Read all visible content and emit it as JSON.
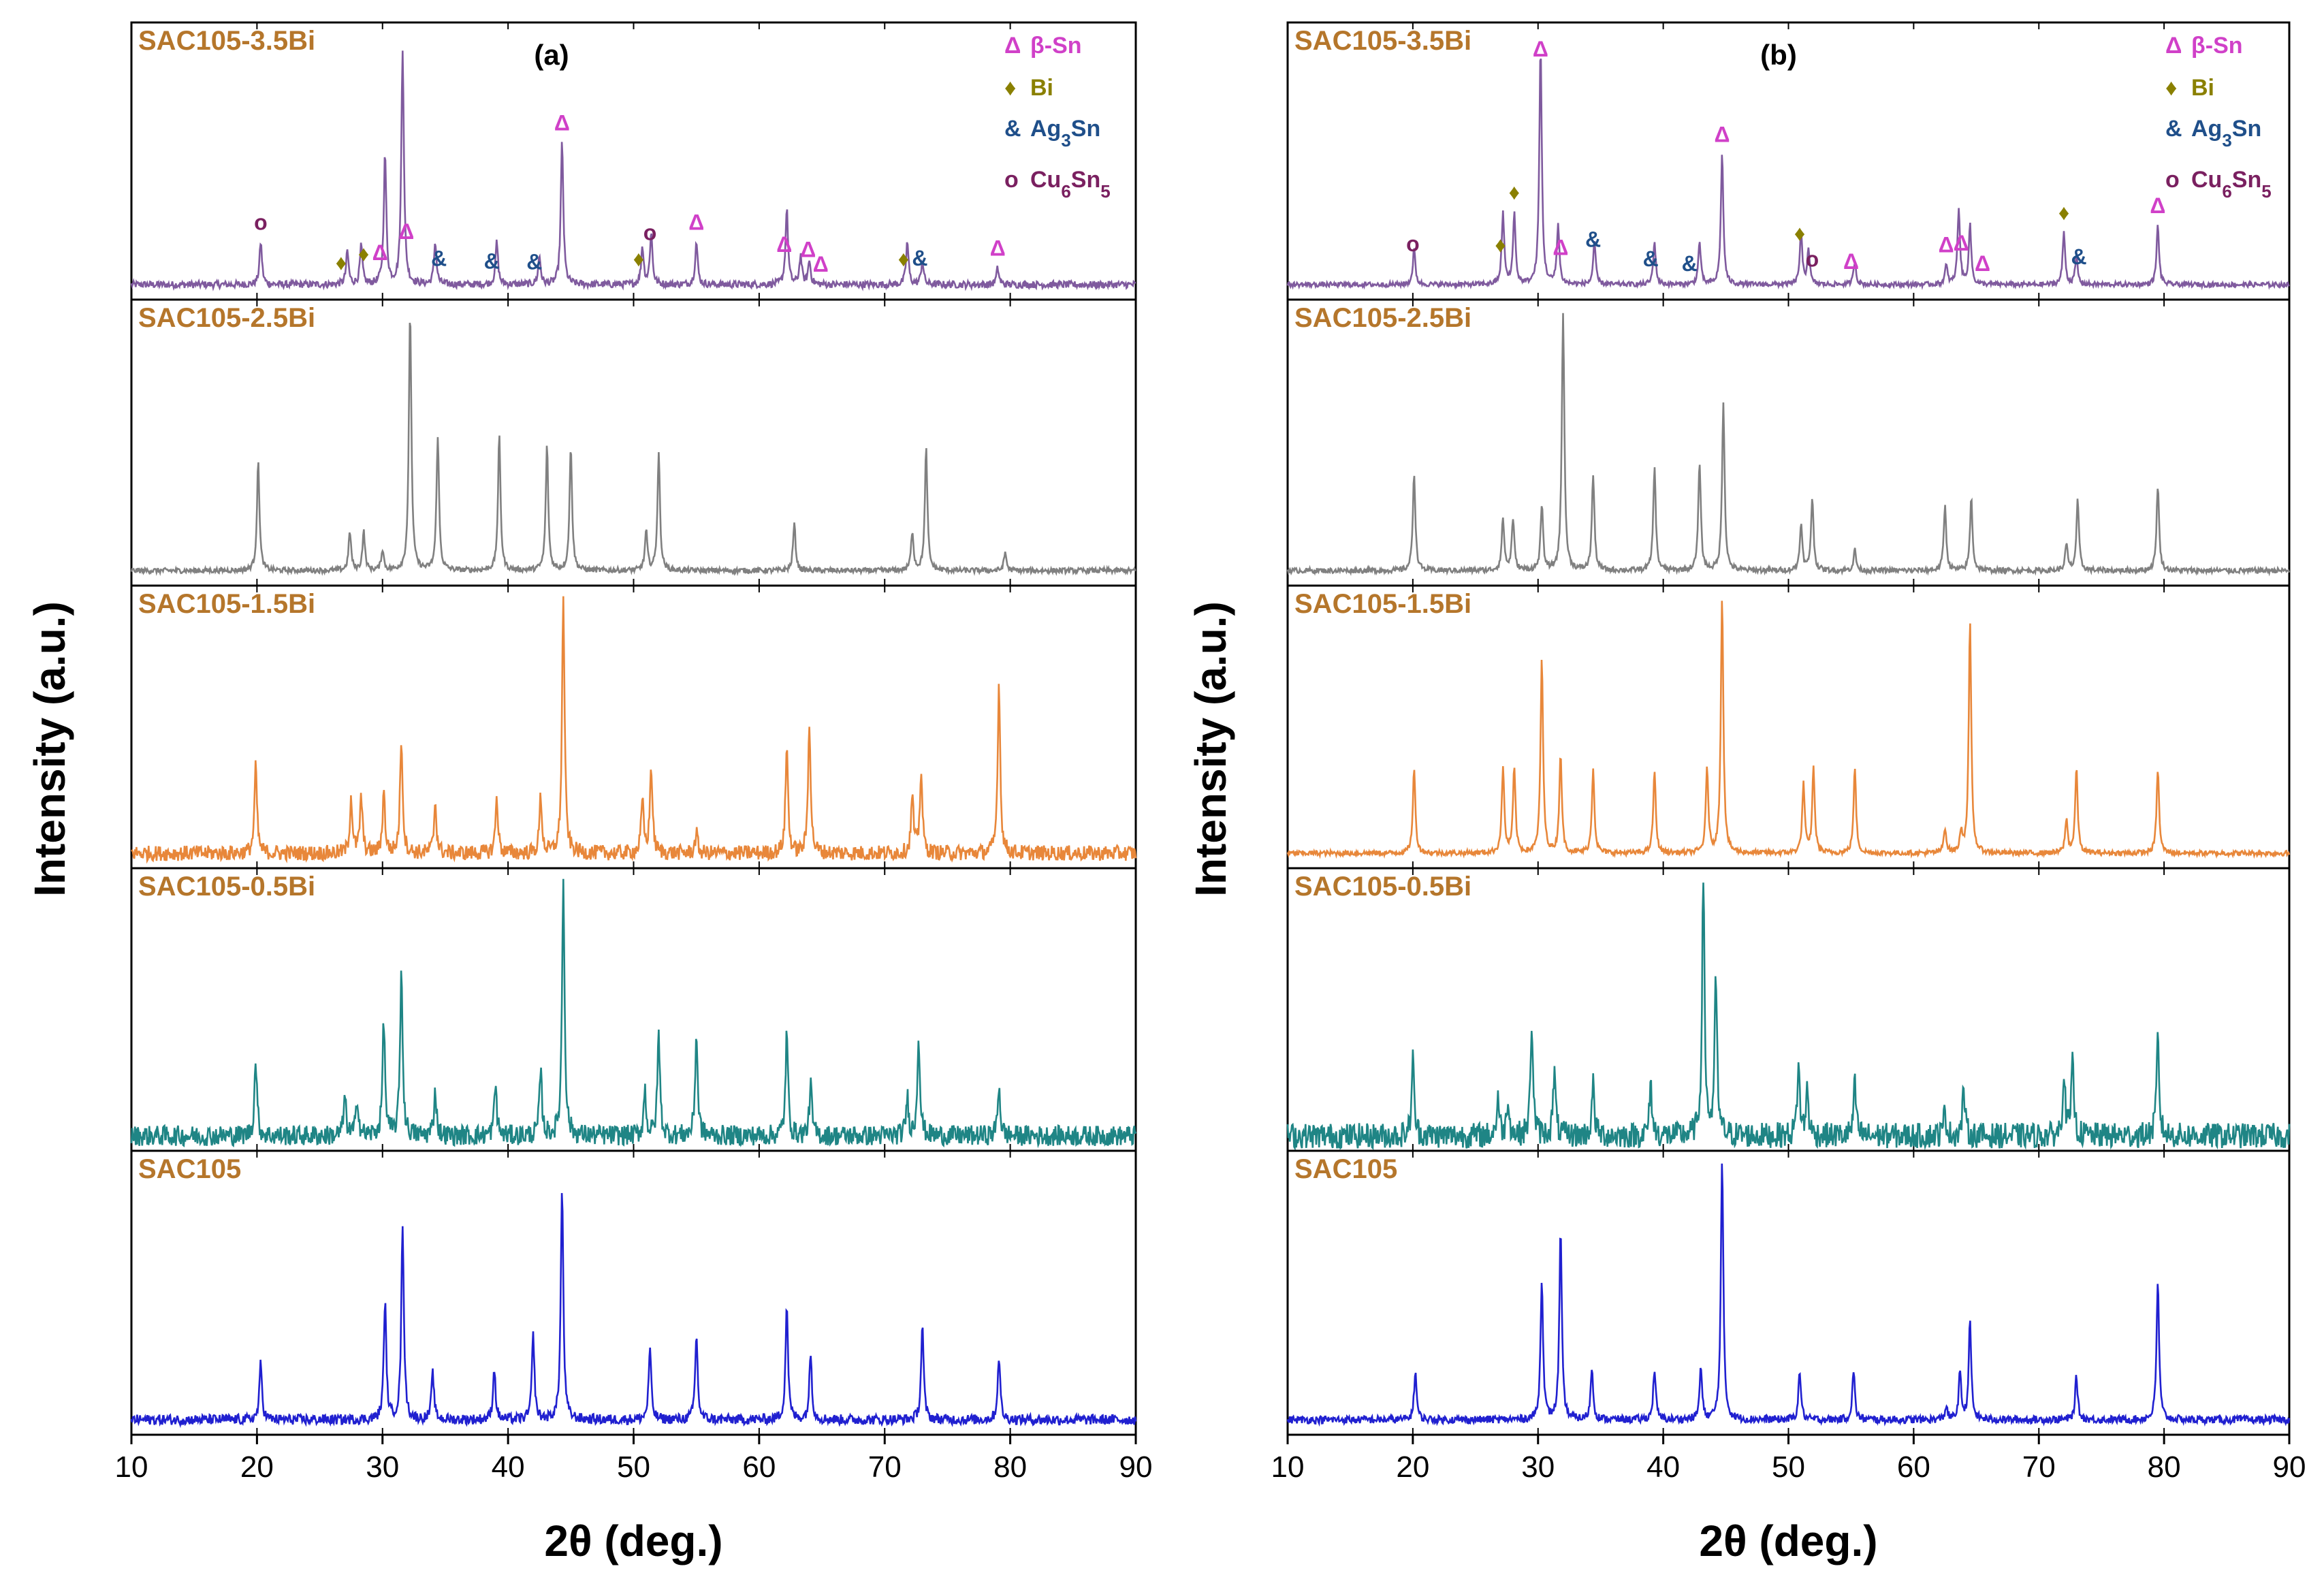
{
  "chart_data": [
    {
      "type": "line",
      "panel_label": "(a)",
      "xlabel": "2θ (deg.)",
      "ylabel": "Intensity (a.u.)",
      "xlim": [
        10,
        90
      ],
      "xticks": [
        10,
        20,
        30,
        40,
        50,
        60,
        70,
        80,
        90
      ],
      "stacked": true,
      "series": [
        {
          "name": "SAC105-3.5Bi",
          "color": "#7f5a9e",
          "noise": 0.015,
          "peaks": [
            [
              20.3,
              0.18
            ],
            [
              27.2,
              0.14
            ],
            [
              28.3,
              0.16
            ],
            [
              30.2,
              0.55
            ],
            [
              31.6,
              1.0
            ],
            [
              34.2,
              0.18
            ],
            [
              39.1,
              0.18
            ],
            [
              42.5,
              0.12
            ],
            [
              44.3,
              0.6
            ],
            [
              50.7,
              0.16
            ],
            [
              51.4,
              0.22
            ],
            [
              55.0,
              0.18
            ],
            [
              62.2,
              0.32
            ],
            [
              63.3,
              0.12
            ],
            [
              64.0,
              0.1
            ],
            [
              71.8,
              0.18
            ],
            [
              73.0,
              0.1
            ],
            [
              79.0,
              0.07
            ]
          ]
        },
        {
          "name": "SAC105-2.5Bi",
          "color": "#808080",
          "noise": 0.01,
          "peaks": [
            [
              20.1,
              0.42
            ],
            [
              27.4,
              0.15
            ],
            [
              28.5,
              0.15
            ],
            [
              30.0,
              0.08
            ],
            [
              32.2,
              1.0
            ],
            [
              34.4,
              0.52
            ],
            [
              39.3,
              0.52
            ],
            [
              43.1,
              0.48
            ],
            [
              45.0,
              0.48
            ],
            [
              51.0,
              0.15
            ],
            [
              52.0,
              0.45
            ],
            [
              62.8,
              0.18
            ],
            [
              72.2,
              0.15
            ],
            [
              73.3,
              0.47
            ],
            [
              79.6,
              0.07
            ]
          ]
        },
        {
          "name": "SAC105-1.5Bi",
          "color": "#e8873a",
          "noise": 0.03,
          "peaks": [
            [
              19.9,
              0.34
            ],
            [
              27.5,
              0.22
            ],
            [
              28.3,
              0.22
            ],
            [
              30.1,
              0.24
            ],
            [
              31.5,
              0.45
            ],
            [
              34.2,
              0.2
            ],
            [
              39.1,
              0.22
            ],
            [
              42.6,
              0.22
            ],
            [
              44.4,
              1.0
            ],
            [
              50.7,
              0.2
            ],
            [
              51.4,
              0.34
            ],
            [
              55.0,
              0.08
            ],
            [
              62.2,
              0.42
            ],
            [
              64.0,
              0.52
            ],
            [
              72.2,
              0.22
            ],
            [
              72.9,
              0.32
            ],
            [
              79.1,
              0.67
            ]
          ]
        },
        {
          "name": "SAC105-0.5Bi",
          "color": "#1f8585",
          "noise": 0.04,
          "peaks": [
            [
              19.9,
              0.3
            ],
            [
              27.0,
              0.15
            ],
            [
              28.0,
              0.15
            ],
            [
              30.1,
              0.45
            ],
            [
              31.5,
              0.65
            ],
            [
              34.2,
              0.18
            ],
            [
              39.0,
              0.2
            ],
            [
              42.6,
              0.25
            ],
            [
              44.4,
              1.0
            ],
            [
              50.9,
              0.18
            ],
            [
              52.0,
              0.4
            ],
            [
              55.0,
              0.4
            ],
            [
              62.2,
              0.4
            ],
            [
              64.1,
              0.2
            ],
            [
              71.8,
              0.15
            ],
            [
              72.7,
              0.4
            ],
            [
              79.1,
              0.2
            ]
          ]
        },
        {
          "name": "SAC105",
          "color": "#2020d0",
          "noise": 0.02,
          "peaks": [
            [
              20.3,
              0.22
            ],
            [
              30.2,
              0.46
            ],
            [
              31.6,
              0.76
            ],
            [
              34.0,
              0.18
            ],
            [
              38.9,
              0.2
            ],
            [
              42.0,
              0.33
            ],
            [
              44.3,
              0.9
            ],
            [
              51.3,
              0.28
            ],
            [
              55.0,
              0.33
            ],
            [
              62.2,
              0.45
            ],
            [
              64.1,
              0.26
            ],
            [
              73.0,
              0.37
            ],
            [
              79.1,
              0.25
            ]
          ]
        }
      ],
      "markers": [
        {
          "label": "o",
          "x": 20.3,
          "color": "#7a2060"
        },
        {
          "label": "♦",
          "x": 26.7,
          "color": "#8a8000"
        },
        {
          "label": "♦",
          "x": 28.5,
          "color": "#8a8000"
        },
        {
          "label": "Δ",
          "x": 29.8,
          "color": "#d040c8"
        },
        {
          "label": "Δ",
          "x": 31.9,
          "color": "#d040c8"
        },
        {
          "label": "&",
          "x": 34.5,
          "color": "#1f4f8a"
        },
        {
          "label": "&",
          "x": 38.7,
          "color": "#1f4f8a"
        },
        {
          "label": "&",
          "x": 42.1,
          "color": "#1f4f8a"
        },
        {
          "label": "Δ",
          "x": 44.3,
          "color": "#d040c8"
        },
        {
          "label": "♦",
          "x": 50.4,
          "color": "#8a8000"
        },
        {
          "label": "o",
          "x": 51.3,
          "color": "#7a2060"
        },
        {
          "label": "Δ",
          "x": 55.0,
          "color": "#d040c8"
        },
        {
          "label": "Δ",
          "x": 62.0,
          "color": "#d040c8"
        },
        {
          "label": "Δ",
          "x": 63.9,
          "color": "#d040c8"
        },
        {
          "label": "Δ",
          "x": 64.9,
          "color": "#d040c8"
        },
        {
          "label": "♦",
          "x": 71.5,
          "color": "#8a8000"
        },
        {
          "label": "&",
          "x": 72.8,
          "color": "#1f4f8a"
        },
        {
          "label": "Δ",
          "x": 79.0,
          "color": "#d040c8"
        }
      ],
      "legend": [
        {
          "symbol": "Δ",
          "text": "β-Sn",
          "color": "#d040c8"
        },
        {
          "symbol": "♦",
          "text": "Bi",
          "color": "#8a8000"
        },
        {
          "symbol": "&",
          "text": "Ag₃Sn",
          "color": "#1f4f8a"
        },
        {
          "symbol": "o",
          "text": "Cu₆Sn₅",
          "color": "#7a2060"
        }
      ]
    },
    {
      "type": "line",
      "panel_label": "(b)",
      "xlabel": "2θ (deg.)",
      "ylabel": "Intensity (a.u.)",
      "xlim": [
        10,
        90
      ],
      "xticks": [
        10,
        20,
        30,
        40,
        50,
        60,
        70,
        80,
        90
      ],
      "stacked": true,
      "series": [
        {
          "name": "SAC105-3.5Bi",
          "color": "#7f5a9e",
          "noise": 0.01,
          "peaks": [
            [
              20.1,
              0.15
            ],
            [
              27.2,
              0.3
            ],
            [
              28.1,
              0.3
            ],
            [
              30.2,
              1.0
            ],
            [
              31.6,
              0.25
            ],
            [
              34.5,
              0.18
            ],
            [
              39.3,
              0.18
            ],
            [
              42.9,
              0.18
            ],
            [
              44.7,
              0.55
            ],
            [
              51.0,
              0.22
            ],
            [
              51.6,
              0.15
            ],
            [
              55.3,
              0.1
            ],
            [
              62.6,
              0.08
            ],
            [
              63.6,
              0.32
            ],
            [
              64.5,
              0.25
            ],
            [
              72.0,
              0.22
            ],
            [
              73.0,
              0.12
            ],
            [
              79.5,
              0.25
            ]
          ]
        },
        {
          "name": "SAC105-2.5Bi",
          "color": "#808080",
          "noise": 0.01,
          "peaks": [
            [
              20.1,
              0.38
            ],
            [
              27.2,
              0.2
            ],
            [
              28.0,
              0.2
            ],
            [
              30.3,
              0.25
            ],
            [
              32.0,
              1.0
            ],
            [
              34.4,
              0.37
            ],
            [
              39.3,
              0.4
            ],
            [
              42.9,
              0.42
            ],
            [
              44.8,
              0.65
            ],
            [
              51.0,
              0.18
            ],
            [
              51.9,
              0.28
            ],
            [
              55.3,
              0.08
            ],
            [
              62.5,
              0.25
            ],
            [
              64.6,
              0.28
            ],
            [
              72.2,
              0.1
            ],
            [
              73.1,
              0.27
            ],
            [
              79.5,
              0.33
            ]
          ]
        },
        {
          "name": "SAC105-1.5Bi",
          "color": "#e8873a",
          "noise": 0.01,
          "peaks": [
            [
              20.1,
              0.33
            ],
            [
              27.2,
              0.33
            ],
            [
              28.1,
              0.33
            ],
            [
              30.3,
              0.76
            ],
            [
              31.8,
              0.39
            ],
            [
              34.4,
              0.33
            ],
            [
              39.3,
              0.32
            ],
            [
              43.5,
              0.33
            ],
            [
              44.7,
              1.0
            ],
            [
              51.2,
              0.27
            ],
            [
              52.0,
              0.33
            ],
            [
              55.3,
              0.33
            ],
            [
              62.5,
              0.1
            ],
            [
              63.8,
              0.08
            ],
            [
              64.5,
              0.9
            ],
            [
              72.2,
              0.13
            ],
            [
              73.0,
              0.33
            ],
            [
              79.5,
              0.33
            ]
          ]
        },
        {
          "name": "SAC105-0.5Bi",
          "color": "#1f8585",
          "noise": 0.05,
          "peaks": [
            [
              20.0,
              0.3
            ],
            [
              26.8,
              0.15
            ],
            [
              27.6,
              0.15
            ],
            [
              29.5,
              0.45
            ],
            [
              31.3,
              0.25
            ],
            [
              34.4,
              0.2
            ],
            [
              39.0,
              0.2
            ],
            [
              43.2,
              1.0
            ],
            [
              44.2,
              0.6
            ],
            [
              50.8,
              0.28
            ],
            [
              51.5,
              0.18
            ],
            [
              55.3,
              0.2
            ],
            [
              62.5,
              0.1
            ],
            [
              64.0,
              0.18
            ],
            [
              72.0,
              0.25
            ],
            [
              72.7,
              0.28
            ],
            [
              79.5,
              0.38
            ]
          ]
        },
        {
          "name": "SAC105",
          "color": "#2020d0",
          "noise": 0.015,
          "peaks": [
            [
              20.2,
              0.19
            ],
            [
              30.3,
              0.55
            ],
            [
              31.8,
              0.73
            ],
            [
              34.3,
              0.2
            ],
            [
              39.3,
              0.2
            ],
            [
              43.0,
              0.2
            ],
            [
              44.7,
              1.0
            ],
            [
              50.9,
              0.19
            ],
            [
              55.2,
              0.19
            ],
            [
              62.6,
              0.05
            ],
            [
              63.7,
              0.18
            ],
            [
              64.5,
              0.38
            ],
            [
              73.0,
              0.17
            ],
            [
              79.5,
              0.54
            ]
          ]
        }
      ],
      "markers": [
        {
          "label": "o",
          "x": 20.0,
          "color": "#7a2060"
        },
        {
          "label": "♦",
          "x": 27.0,
          "color": "#8a8000"
        },
        {
          "label": "♦",
          "x": 28.1,
          "color": "#8a8000"
        },
        {
          "label": "Δ",
          "x": 30.2,
          "color": "#d040c8"
        },
        {
          "label": "Δ",
          "x": 31.8,
          "color": "#d040c8"
        },
        {
          "label": "&",
          "x": 34.4,
          "color": "#1f4f8a"
        },
        {
          "label": "&",
          "x": 39.0,
          "color": "#1f4f8a"
        },
        {
          "label": "&",
          "x": 42.1,
          "color": "#1f4f8a"
        },
        {
          "label": "Δ",
          "x": 44.7,
          "color": "#d040c8"
        },
        {
          "label": "♦",
          "x": 50.9,
          "color": "#8a8000"
        },
        {
          "label": "o",
          "x": 51.9,
          "color": "#7a2060"
        },
        {
          "label": "Δ",
          "x": 55.0,
          "color": "#d040c8"
        },
        {
          "label": "Δ",
          "x": 62.6,
          "color": "#d040c8"
        },
        {
          "label": "Δ",
          "x": 63.8,
          "color": "#d040c8"
        },
        {
          "label": "Δ",
          "x": 65.5,
          "color": "#d040c8"
        },
        {
          "label": "♦",
          "x": 72.0,
          "color": "#8a8000"
        },
        {
          "label": "&",
          "x": 73.2,
          "color": "#1f4f8a"
        },
        {
          "label": "Δ",
          "x": 79.5,
          "color": "#d040c8"
        }
      ],
      "legend": [
        {
          "symbol": "Δ",
          "text": "β-Sn",
          "color": "#d040c8"
        },
        {
          "symbol": "♦",
          "text": "Bi",
          "color": "#8a8000"
        },
        {
          "symbol": "&",
          "text": "Ag₃Sn",
          "color": "#1f4f8a"
        },
        {
          "symbol": "o",
          "text": "Cu₆Sn₅",
          "color": "#7a2060"
        }
      ]
    }
  ]
}
